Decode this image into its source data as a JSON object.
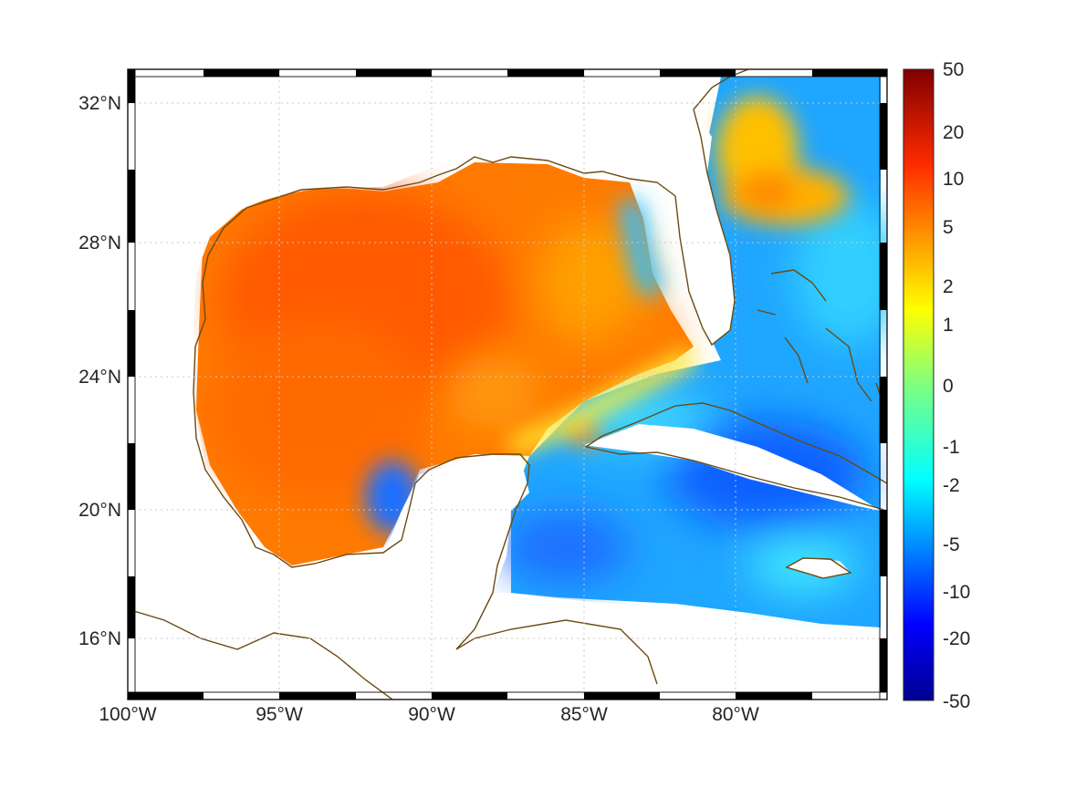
{
  "map": {
    "lon_ticks": [
      "100°W",
      "95°W",
      "90°W",
      "85°W",
      "80°W"
    ],
    "lat_ticks": [
      "32°N",
      "28°N",
      "24°N",
      "20°N",
      "16°N"
    ],
    "lon_range_deg": [
      -100,
      -75
    ],
    "lat_range_deg": [
      14.5,
      33
    ],
    "grid": "dotted"
  },
  "colorbar": {
    "labels": [
      "50",
      "20",
      "10",
      "5",
      "2",
      "1",
      "0",
      "-1",
      "-2",
      "-5",
      "-10",
      "-20",
      "-50"
    ],
    "colormap": "jet"
  },
  "colors": {
    "coast": "#6b4a12",
    "grid": "#c8c8c8"
  }
}
